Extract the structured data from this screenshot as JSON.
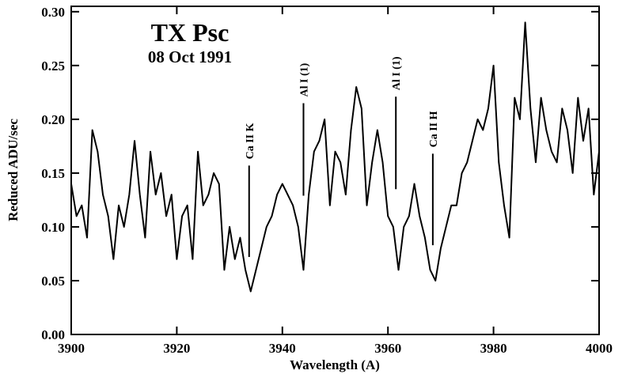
{
  "chart_data": {
    "type": "line",
    "title": "TX Psc",
    "subtitle": "08 Oct 1991",
    "x_label": "Wavelength (A)",
    "y_label": "Reduced ADU/sec",
    "color": "#000000",
    "x": [
      3900,
      3901,
      3902,
      3903,
      3904,
      3905,
      3906,
      3907,
      3908,
      3909,
      3910,
      3911,
      3912,
      3913,
      3914,
      3915,
      3916,
      3917,
      3918,
      3919,
      3920,
      3921,
      3922,
      3923,
      3924,
      3925,
      3926,
      3927,
      3928,
      3929,
      3930,
      3931,
      3932,
      3933,
      3934,
      3935,
      3936,
      3937,
      3938,
      3939,
      3940,
      3941,
      3942,
      3943,
      3944,
      3945,
      3946,
      3947,
      3948,
      3949,
      3950,
      3951,
      3952,
      3953,
      3954,
      3955,
      3956,
      3957,
      3958,
      3959,
      3960,
      3961,
      3962,
      3963,
      3964,
      3965,
      3966,
      3967,
      3968,
      3969,
      3970,
      3971,
      3972,
      3973,
      3974,
      3975,
      3976,
      3977,
      3978,
      3979,
      3980,
      3981,
      3982,
      3983,
      3984,
      3985,
      3986,
      3987,
      3988,
      3989,
      3990,
      3991,
      3992,
      3993,
      3994,
      3995,
      3996,
      3997,
      3998,
      3999,
      4000
    ],
    "values": [
      0.14,
      0.11,
      0.12,
      0.09,
      0.19,
      0.17,
      0.13,
      0.11,
      0.07,
      0.12,
      0.1,
      0.13,
      0.18,
      0.13,
      0.09,
      0.17,
      0.13,
      0.15,
      0.11,
      0.13,
      0.07,
      0.11,
      0.12,
      0.07,
      0.17,
      0.12,
      0.13,
      0.15,
      0.14,
      0.06,
      0.1,
      0.07,
      0.09,
      0.06,
      0.04,
      0.06,
      0.08,
      0.1,
      0.11,
      0.13,
      0.14,
      0.13,
      0.12,
      0.1,
      0.06,
      0.13,
      0.17,
      0.18,
      0.2,
      0.12,
      0.17,
      0.16,
      0.13,
      0.19,
      0.23,
      0.21,
      0.12,
      0.16,
      0.19,
      0.16,
      0.11,
      0.1,
      0.06,
      0.1,
      0.11,
      0.14,
      0.11,
      0.09,
      0.06,
      0.05,
      0.08,
      0.1,
      0.12,
      0.12,
      0.15,
      0.16,
      0.18,
      0.2,
      0.19,
      0.21,
      0.25,
      0.16,
      0.12,
      0.09,
      0.22,
      0.2,
      0.29,
      0.21,
      0.16,
      0.22,
      0.19,
      0.17,
      0.16,
      0.21,
      0.19,
      0.15,
      0.22,
      0.18,
      0.21,
      0.13,
      0.17
    ],
    "xlim": [
      3900,
      4000
    ],
    "xticks": [
      3900,
      3920,
      3940,
      3960,
      3980,
      4000
    ],
    "ylim": [
      0,
      0.305
    ],
    "yticks": [
      {
        "value": 0,
        "label": "0.00"
      },
      0.05,
      {
        "value": 0.1,
        "label": "0.10"
      },
      0.15,
      {
        "value": 0.2,
        "label": "0.20"
      },
      0.25,
      {
        "value": 0.3,
        "label": "0.30"
      }
    ],
    "annotations": [
      {
        "text": "Ca II K",
        "x": 3933.7,
        "y": [
          0.072,
          0.157
        ]
      },
      {
        "text": "Al I (1)",
        "x": 3944.0,
        "y": [
          0.129,
          0.215
        ]
      },
      {
        "text": "Al I (1)",
        "x": 3961.5,
        "y": [
          0.135,
          0.221
        ]
      },
      {
        "text": "Ca II H",
        "x": 3968.5,
        "y": [
          0.083,
          0.168
        ]
      }
    ]
  }
}
